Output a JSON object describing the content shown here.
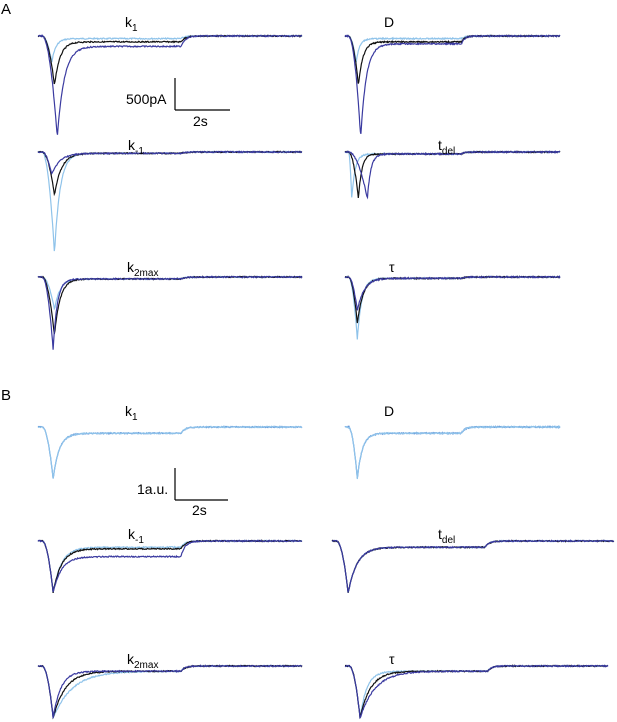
{
  "panels": [
    {
      "letter": "A",
      "scalebar": {
        "vertical_label": "500pA",
        "horizontal_label": "2s"
      },
      "subplots": [
        {
          "id": "A-k1",
          "label_main": "k",
          "label_sub": "1",
          "label_sup": ""
        },
        {
          "id": "A-D",
          "label_main": "D",
          "label_sub": "",
          "label_sup": ""
        },
        {
          "id": "A-km1",
          "label_main": "k",
          "label_sub": "-1",
          "label_sup": ""
        },
        {
          "id": "A-tdel",
          "label_main": "t",
          "label_sub": "del",
          "label_sup": ""
        },
        {
          "id": "A-k2max",
          "label_main": "k",
          "label_sub": "2max",
          "label_sup": ""
        },
        {
          "id": "A-tau",
          "label_main": "τ",
          "label_sub": "",
          "label_sup": ""
        }
      ]
    },
    {
      "letter": "B",
      "scalebar": {
        "vertical_label": "1a.u.",
        "horizontal_label": "2s"
      },
      "subplots": [
        {
          "id": "B-k1",
          "label_main": "k",
          "label_sub": "1",
          "label_sup": ""
        },
        {
          "id": "B-D",
          "label_main": "D",
          "label_sub": "",
          "label_sup": ""
        },
        {
          "id": "B-km1",
          "label_main": "k",
          "label_sub": "-1",
          "label_sup": ""
        },
        {
          "id": "B-tdel",
          "label_main": "t",
          "label_sub": "del",
          "label_sup": ""
        },
        {
          "id": "B-k2max",
          "label_main": "k",
          "label_sub": "2max",
          "label_sup": ""
        },
        {
          "id": "B-tau",
          "label_main": "τ",
          "label_sub": "",
          "label_sup": ""
        }
      ]
    }
  ],
  "colors": {
    "light_blue": "#8fc3ea",
    "black": "#111111",
    "dark_blue": "#3a3aa0",
    "medium_blue": "#5b8fd6"
  },
  "chart_data": [
    {
      "type": "line",
      "title": "k1",
      "panel": "A",
      "x_unit": "s",
      "series": [
        {
          "color": "light_blue",
          "peak_time": 0.5,
          "peak": -200,
          "tau_rise": 0.15,
          "steady": -20
        },
        {
          "color": "black",
          "peak_time": 0.6,
          "peak": -380,
          "tau_rise": 0.2,
          "steady": -45
        },
        {
          "color": "dark_blue",
          "peak_time": 0.7,
          "peak": -780,
          "tau_rise": 0.25,
          "steady": -80
        }
      ],
      "step_time": 5.2
    },
    {
      "type": "line",
      "title": "D",
      "panel": "A",
      "x_unit": "s",
      "series": [
        {
          "color": "light_blue",
          "peak_time": 0.5,
          "peak": -200,
          "tau_rise": 0.15,
          "steady": -20
        },
        {
          "color": "black",
          "peak_time": 0.6,
          "peak": -380,
          "tau_rise": 0.2,
          "steady": -45
        },
        {
          "color": "dark_blue",
          "peak_time": 0.7,
          "peak": -780,
          "tau_rise": 0.25,
          "steady": -60
        }
      ],
      "step_time": 5.2
    },
    {
      "type": "line",
      "title": "k-1",
      "panel": "A",
      "x_unit": "s",
      "series": [
        {
          "color": "light_blue",
          "peak_time": 0.6,
          "peak": -780,
          "tau_rise": 0.2,
          "steady": -10
        },
        {
          "color": "black",
          "peak_time": 0.6,
          "peak": -330,
          "tau_rise": 0.25,
          "steady": -10
        },
        {
          "color": "dark_blue",
          "peak_time": 0.5,
          "peak": -170,
          "tau_rise": 0.3,
          "steady": -10
        }
      ],
      "step_time": 5.2
    },
    {
      "type": "line",
      "title": "tdel",
      "panel": "A",
      "x_unit": "s",
      "series": [
        {
          "color": "light_blue",
          "peak_time": 0.3,
          "peak": -360,
          "tau_rise": 0.15,
          "steady": -15
        },
        {
          "color": "black",
          "peak_time": 0.6,
          "peak": -360,
          "tau_rise": 0.15,
          "steady": -15
        },
        {
          "color": "dark_blue",
          "peak_time": 1.0,
          "peak": -360,
          "tau_rise": 0.15,
          "steady": -15
        }
      ],
      "step_time": 5.2
    },
    {
      "type": "line",
      "title": "k2max",
      "panel": "A",
      "x_unit": "s",
      "series": [
        {
          "color": "light_blue",
          "peak_time": 0.6,
          "peak": -250,
          "tau_rise": 0.2,
          "steady": -15
        },
        {
          "color": "black",
          "peak_time": 0.6,
          "peak": -450,
          "tau_rise": 0.2,
          "steady": -15
        },
        {
          "color": "dark_blue",
          "peak_time": 0.55,
          "peak": -560,
          "tau_rise": 0.15,
          "steady": -15
        }
      ],
      "step_time": 5.2
    },
    {
      "type": "line",
      "title": "τ",
      "panel": "A",
      "x_unit": "s",
      "series": [
        {
          "color": "light_blue",
          "peak_time": 0.55,
          "peak": -480,
          "tau_rise": 0.2,
          "steady": -10
        },
        {
          "color": "black",
          "peak_time": 0.55,
          "peak": -360,
          "tau_rise": 0.25,
          "steady": -10
        },
        {
          "color": "dark_blue",
          "peak_time": 0.55,
          "peak": -260,
          "tau_rise": 0.3,
          "steady": -10
        }
      ],
      "step_time": 5.2
    },
    {
      "type": "line",
      "title": "k1",
      "panel": "B",
      "x_unit": "s",
      "series": [
        {
          "color": "medium_blue",
          "peak_time": 0.55,
          "peak": -1,
          "tau_rise": 0.22,
          "steady": -0.12
        },
        {
          "color": "light_blue",
          "peak_time": 0.55,
          "peak": -1,
          "tau_rise": 0.22,
          "steady": -0.12
        }
      ],
      "step_time": 5.2
    },
    {
      "type": "line",
      "title": "D",
      "panel": "B",
      "x_unit": "s",
      "series": [
        {
          "color": "medium_blue",
          "peak_time": 0.55,
          "peak": -1,
          "tau_rise": 0.22,
          "steady": -0.12
        },
        {
          "color": "light_blue",
          "peak_time": 0.55,
          "peak": -1,
          "tau_rise": 0.22,
          "steady": -0.12
        }
      ],
      "step_time": 5.2
    },
    {
      "type": "line",
      "title": "k-1",
      "panel": "B",
      "x_unit": "s",
      "series": [
        {
          "color": "light_blue",
          "peak_time": 0.55,
          "peak": -1,
          "tau_rise": 0.3,
          "steady": -0.12
        },
        {
          "color": "black",
          "peak_time": 0.55,
          "peak": -1,
          "tau_rise": 0.3,
          "steady": -0.15
        },
        {
          "color": "dark_blue",
          "peak_time": 0.55,
          "peak": -1,
          "tau_rise": 0.3,
          "steady": -0.3
        }
      ],
      "step_time": 5.2
    },
    {
      "type": "line",
      "title": "tdel",
      "panel": "B",
      "x_unit": "s",
      "series": [
        {
          "color": "light_blue",
          "peak_time": 0.55,
          "peak": -1,
          "tau_rise": 0.3,
          "steady": -0.12
        },
        {
          "color": "black",
          "peak_time": 0.55,
          "peak": -1,
          "tau_rise": 0.3,
          "steady": -0.12
        },
        {
          "color": "dark_blue",
          "peak_time": 0.55,
          "peak": -1,
          "tau_rise": 0.3,
          "steady": -0.12
        }
      ],
      "step_time": 5.2
    },
    {
      "type": "line",
      "title": "k2max",
      "panel": "B",
      "x_unit": "s",
      "series": [
        {
          "color": "light_blue",
          "peak_time": 0.55,
          "peak": -1,
          "tau_rise": 0.7,
          "steady": -0.1
        },
        {
          "color": "black",
          "peak_time": 0.55,
          "peak": -1,
          "tau_rise": 0.45,
          "steady": -0.1
        },
        {
          "color": "dark_blue",
          "peak_time": 0.55,
          "peak": -1,
          "tau_rise": 0.28,
          "steady": -0.1
        }
      ],
      "step_time": 5.2
    },
    {
      "type": "line",
      "title": "τ",
      "panel": "B",
      "x_unit": "s",
      "series": [
        {
          "color": "light_blue",
          "peak_time": 0.55,
          "peak": -1,
          "tau_rise": 0.25,
          "steady": -0.1
        },
        {
          "color": "black",
          "peak_time": 0.55,
          "peak": -1,
          "tau_rise": 0.38,
          "steady": -0.1
        },
        {
          "color": "dark_blue",
          "peak_time": 0.55,
          "peak": -1,
          "tau_rise": 0.55,
          "steady": -0.1
        }
      ],
      "step_time": 5.2
    }
  ]
}
